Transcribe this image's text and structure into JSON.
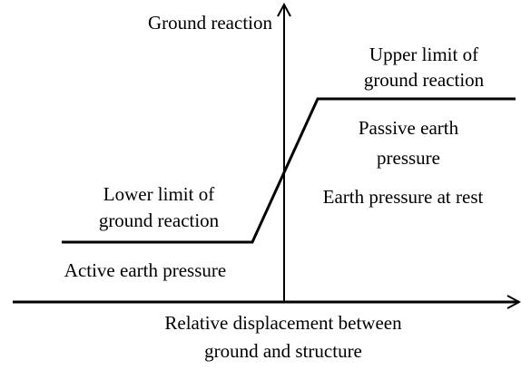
{
  "axes": {
    "y_label": "Ground reaction",
    "x_label": [
      "Relative displacement between",
      "ground and structure"
    ]
  },
  "labels": {
    "upper_limit": [
      "Upper limit of",
      "ground reaction"
    ],
    "passive": [
      "Passive earth",
      "pressure"
    ],
    "at_rest": [
      "Earth pressure at rest"
    ],
    "lower_limit": [
      "Lower limit of",
      "ground reaction"
    ],
    "active": [
      "Active earth pressure"
    ]
  }
}
